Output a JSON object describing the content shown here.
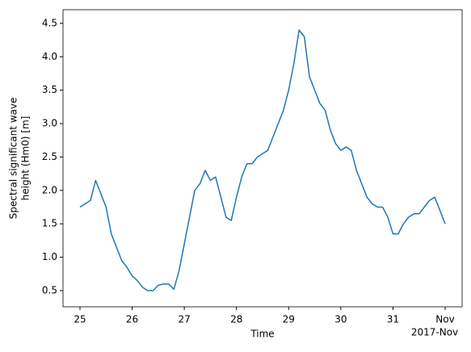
{
  "chart_data": {
    "type": "line",
    "xlabel": "Time",
    "ylabel": [
      "Spectral significant wave",
      "height (Hm0) [m]"
    ],
    "x_offset_label": "2017-Nov",
    "x": [
      25.0,
      25.1,
      25.2,
      25.3,
      25.4,
      25.5,
      25.6,
      25.7,
      25.8,
      25.9,
      26.0,
      26.1,
      26.2,
      26.3,
      26.4,
      26.5,
      26.6,
      26.7,
      26.8,
      26.9,
      27.0,
      27.1,
      27.2,
      27.3,
      27.4,
      27.5,
      27.6,
      27.7,
      27.8,
      27.9,
      28.0,
      28.1,
      28.2,
      28.3,
      28.4,
      28.5,
      28.6,
      28.7,
      28.8,
      28.9,
      29.0,
      29.1,
      29.2,
      29.3,
      29.4,
      29.5,
      29.6,
      29.7,
      29.8,
      29.9,
      30.0,
      30.1,
      30.2,
      30.3,
      30.4,
      30.5,
      30.6,
      30.7,
      30.8,
      30.9,
      31.0,
      31.1,
      31.2,
      31.3,
      31.4,
      31.5,
      31.6,
      31.7,
      31.8,
      31.9,
      32.0
    ],
    "values": [
      1.75,
      1.8,
      1.85,
      2.15,
      1.95,
      1.75,
      1.35,
      1.15,
      0.95,
      0.85,
      0.72,
      0.65,
      0.55,
      0.5,
      0.5,
      0.58,
      0.6,
      0.6,
      0.52,
      0.8,
      1.2,
      1.6,
      2.0,
      2.1,
      2.3,
      2.15,
      2.2,
      1.9,
      1.6,
      1.55,
      1.9,
      2.2,
      2.4,
      2.4,
      2.5,
      2.55,
      2.6,
      2.8,
      3.0,
      3.2,
      3.5,
      3.9,
      4.4,
      4.3,
      3.7,
      3.5,
      3.3,
      3.2,
      2.9,
      2.7,
      2.6,
      2.65,
      2.6,
      2.3,
      2.1,
      1.9,
      1.8,
      1.75,
      1.75,
      1.6,
      1.35,
      1.35,
      1.5,
      1.6,
      1.65,
      1.65,
      1.75,
      1.85,
      1.9,
      1.7,
      1.5
    ],
    "color": "#1f77b4",
    "xlim": [
      24.675,
      32.325
    ],
    "xticks": [
      25,
      26,
      27,
      28,
      29,
      30,
      31,
      {
        "value": 32,
        "label": "Nov"
      }
    ],
    "ylim": [
      0.258,
      4.705
    ],
    "yticks": [
      0.5,
      {
        "value": 1,
        "label": "1.0"
      },
      1.5,
      {
        "value": 2,
        "label": "2.0"
      },
      2.5,
      {
        "value": 3,
        "label": "3.0"
      },
      3.5,
      {
        "value": 4,
        "label": "4.0"
      },
      4.5
    ],
    "grid": false
  }
}
